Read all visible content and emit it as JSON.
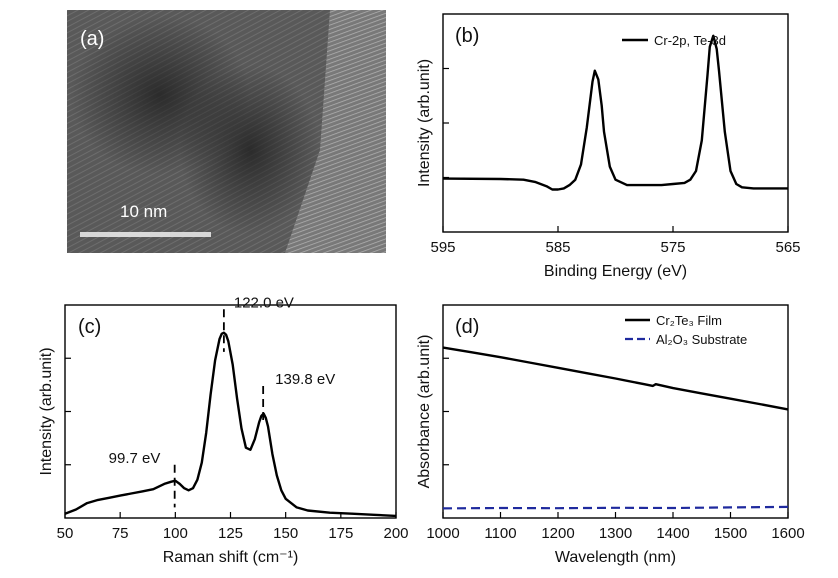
{
  "colors": {
    "line": "#000000",
    "substrate": "#1f2a9e",
    "tem_bg": "#5a5a5a",
    "scale_bar": "#d9d9d9"
  },
  "panel_a": {
    "label": "(a)",
    "scale_bar_text": "10 nm"
  },
  "panel_b": {
    "label": "(b)"
  },
  "panel_c": {
    "label": "(c)"
  },
  "panel_d": {
    "label": "(d)"
  },
  "chart_data": [
    {
      "panel": "(b)",
      "type": "line",
      "xlabel": "Binding Energy (eV)",
      "ylabel": "Intensity (arb.unit)",
      "xlim": [
        595,
        565
      ],
      "ylim": [
        0,
        1
      ],
      "xticks": [
        "595",
        "585",
        "575",
        "565"
      ],
      "legend_placement": "top-right",
      "series": [
        {
          "name": "Cr-2p, Te-3d",
          "x": [
            595,
            590,
            588,
            587,
            586,
            585.5,
            585,
            584.5,
            584,
            583.5,
            583,
            582.5,
            582,
            581.8,
            581.5,
            581.2,
            581,
            580.5,
            580,
            579,
            578,
            577,
            576,
            575,
            574,
            573.5,
            573,
            572.5,
            572,
            571.8,
            571.5,
            571.2,
            571,
            570.5,
            570,
            569.5,
            569,
            568,
            567,
            566,
            565
          ],
          "y": [
            0.245,
            0.243,
            0.24,
            0.23,
            0.21,
            0.195,
            0.195,
            0.2,
            0.215,
            0.24,
            0.31,
            0.48,
            0.69,
            0.74,
            0.7,
            0.58,
            0.46,
            0.3,
            0.24,
            0.215,
            0.215,
            0.215,
            0.215,
            0.22,
            0.225,
            0.24,
            0.28,
            0.42,
            0.72,
            0.85,
            0.9,
            0.84,
            0.74,
            0.46,
            0.28,
            0.22,
            0.205,
            0.2,
            0.2,
            0.2,
            0.2
          ]
        }
      ]
    },
    {
      "panel": "(c)",
      "type": "line",
      "xlabel": "Raman shift (cm⁻¹)",
      "ylabel": "Intensity (arb.unit)",
      "xlim": [
        50,
        200
      ],
      "ylim": [
        0,
        1
      ],
      "xticks": [
        "50",
        "75",
        "100",
        "125",
        "150",
        "175",
        "200"
      ],
      "annotations": [
        "99.7 eV",
        "122.0 eV",
        "139.8 eV"
      ],
      "annotation_x": [
        99.7,
        122.0,
        139.8
      ],
      "series": [
        {
          "x": [
            50,
            55,
            60,
            65,
            70,
            75,
            80,
            85,
            90,
            95,
            98,
            100,
            102,
            104,
            106,
            108,
            110,
            112,
            114,
            116,
            118,
            120,
            121,
            122,
            123,
            124,
            126,
            128,
            130,
            132,
            134,
            136,
            138,
            139,
            140,
            141,
            142,
            144,
            146,
            148,
            150,
            155,
            160,
            170,
            180,
            190,
            200
          ],
          "y": [
            0.02,
            0.04,
            0.07,
            0.085,
            0.095,
            0.105,
            0.115,
            0.125,
            0.135,
            0.16,
            0.17,
            0.175,
            0.16,
            0.14,
            0.13,
            0.14,
            0.18,
            0.26,
            0.4,
            0.58,
            0.74,
            0.84,
            0.865,
            0.87,
            0.86,
            0.83,
            0.72,
            0.56,
            0.42,
            0.33,
            0.32,
            0.37,
            0.45,
            0.48,
            0.49,
            0.47,
            0.43,
            0.3,
            0.2,
            0.13,
            0.09,
            0.05,
            0.035,
            0.025,
            0.02,
            0.015,
            0.01
          ]
        }
      ]
    },
    {
      "panel": "(d)",
      "type": "line",
      "xlabel": "Wavelength (nm)",
      "ylabel": "Absorbance (arb.unit)",
      "xlim": [
        1000,
        1600
      ],
      "ylim": [
        0,
        1
      ],
      "xticks": [
        "1000",
        "1100",
        "1200",
        "1300",
        "1400",
        "1500",
        "1600"
      ],
      "legend_placement": "top-right",
      "legend_labels": [
        "Cr₂Te₃ Film",
        "Al₂O₃ Substrate"
      ],
      "series": [
        {
          "x": [
            1000,
            1050,
            1100,
            1150,
            1200,
            1250,
            1300,
            1350,
            1365,
            1370,
            1400,
            1450,
            1500,
            1550,
            1600
          ],
          "y": [
            0.8,
            0.778,
            0.755,
            0.73,
            0.705,
            0.68,
            0.655,
            0.628,
            0.62,
            0.628,
            0.61,
            0.585,
            0.56,
            0.535,
            0.51
          ]
        },
        {
          "style": "dashed",
          "x": [
            1000,
            1100,
            1200,
            1300,
            1400,
            1500,
            1600
          ],
          "y": [
            0.045,
            0.047,
            0.046,
            0.048,
            0.047,
            0.05,
            0.052
          ]
        }
      ]
    }
  ]
}
